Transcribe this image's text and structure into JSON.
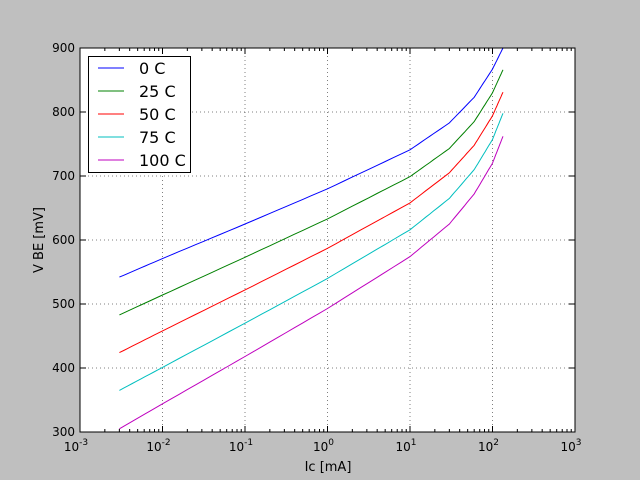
{
  "chart_data": {
    "type": "line",
    "title": "",
    "xlabel": "Ic [mA]",
    "ylabel": "V BE [mV]",
    "xscale": "log",
    "xlim": [
      0.001,
      1000
    ],
    "ylim": [
      300,
      900
    ],
    "grid": true,
    "legend_position": "top-left",
    "x_ticks": [
      {
        "base": "10",
        "exp": "-3"
      },
      {
        "base": "10",
        "exp": "-2"
      },
      {
        "base": "10",
        "exp": "-1"
      },
      {
        "base": "10",
        "exp": "0"
      },
      {
        "base": "10",
        "exp": "1"
      },
      {
        "base": "10",
        "exp": "2"
      },
      {
        "base": "10",
        "exp": "3"
      }
    ],
    "y_ticks": [
      "300",
      "400",
      "500",
      "600",
      "700",
      "800",
      "900"
    ],
    "x": [
      0.003,
      0.01,
      0.1,
      1,
      10,
      30,
      60,
      100,
      134
    ],
    "series": [
      {
        "name": "0 C",
        "color": "#0000ff",
        "values": [
          542,
          571,
          625,
          680,
          741,
          783,
          823,
          867,
          900
        ]
      },
      {
        "name": "25 C",
        "color": "#008000",
        "values": [
          483,
          514,
          573,
          633,
          699,
          743,
          785,
          830,
          866
        ]
      },
      {
        "name": "50 C",
        "color": "#ff0000",
        "values": [
          424,
          458,
          522,
          587,
          658,
          705,
          748,
          794,
          831
        ]
      },
      {
        "name": "75 C",
        "color": "#00bfbf",
        "values": [
          365,
          401,
          470,
          540,
          616,
          665,
          710,
          757,
          798
        ]
      },
      {
        "name": "100 C",
        "color": "#bf00bf",
        "values": [
          305,
          344,
          418,
          493,
          574,
          625,
          672,
          720,
          762
        ]
      }
    ]
  }
}
